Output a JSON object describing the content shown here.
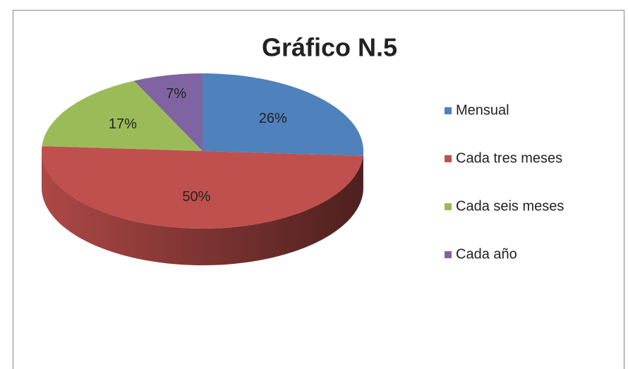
{
  "chart_data": {
    "type": "pie",
    "title": "Gráfico N.5",
    "categories": [
      "Mensual",
      "Cada tres meses",
      "Cada seis meses",
      "Cada año"
    ],
    "values": [
      26,
      50,
      17,
      7
    ],
    "value_labels": [
      "26%",
      "50%",
      "17%",
      "7%"
    ],
    "colors": [
      "#4f81bd",
      "#c0504d",
      "#9bbb59",
      "#8064a2"
    ],
    "legend": "right"
  }
}
